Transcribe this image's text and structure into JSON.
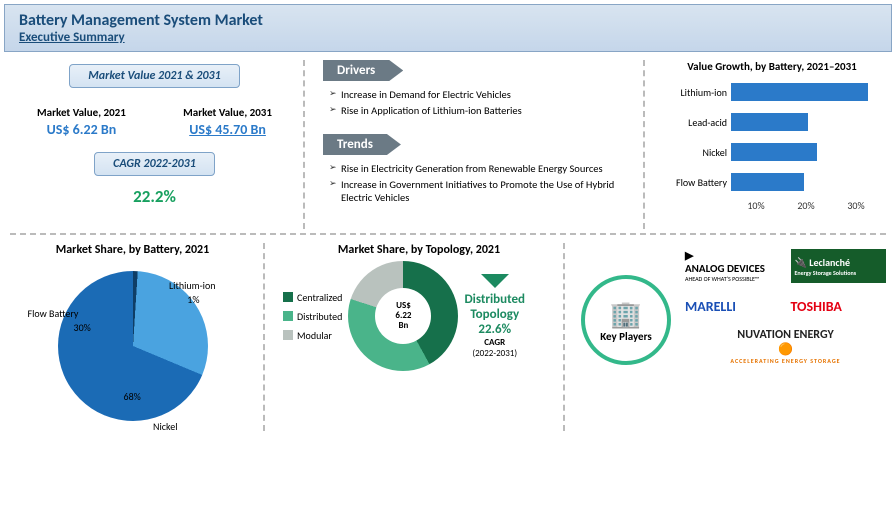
{
  "header": {
    "title": "Battery Management System Market",
    "subtitle": "Executive Summary"
  },
  "market_value": {
    "badge": "Market Value 2021 & 2031",
    "y1_label": "Market Value, 2021",
    "y1_value": "US$ 6.22 Bn",
    "y2_label": "Market Value, 2031",
    "y2_value": "US$ 45.70 Bn",
    "cagr_badge": "CAGR 2022-2031",
    "cagr_value": "22.2%"
  },
  "drivers": {
    "title": "Drivers",
    "items": [
      "Increase in Demand for Electric Vehicles",
      "Rise in Application of Lithium-ion Batteries"
    ]
  },
  "trends": {
    "title": "Trends",
    "items": [
      "Rise in Electricity Generation from Renewable Energy Sources",
      "Increase in Government Initiatives to Promote the Use of Hybrid Electric Vehicles"
    ]
  },
  "value_growth": {
    "title": "Value Growth,\nby Battery, 2021–2031",
    "type": "bar-horizontal",
    "xlim": [
      0,
      35
    ],
    "ticks": [
      "10%",
      "20%",
      "30%"
    ],
    "bars": [
      {
        "label": "Lithium-ion",
        "value": 32
      },
      {
        "label": "Lead-acid",
        "value": 18
      },
      {
        "label": "Nickel",
        "value": 20
      },
      {
        "label": "Flow Battery",
        "value": 17
      }
    ],
    "bar_color": "#2b7ac9",
    "bg": "#ffffff"
  },
  "pie_battery": {
    "title": "Market Share, by Battery, 2021",
    "type": "pie",
    "slices": [
      {
        "label": "Nickel",
        "value": 68,
        "color": "#1b6bb5",
        "pct": "68%"
      },
      {
        "label": "Flow Battery",
        "value": 30,
        "color": "#4aa3e0",
        "pct": "30%"
      },
      {
        "label": "Lithium-ion",
        "value": 1,
        "color": "#0f3e66",
        "pct": "1%"
      }
    ]
  },
  "donut_topology": {
    "title": "Market Share, by Topology, 2021",
    "type": "donut",
    "legend": [
      {
        "label": "Centralized",
        "color": "#16704b"
      },
      {
        "label": "Distributed",
        "color": "#4ab48a"
      },
      {
        "label": "Modular",
        "color": "#b9c2be"
      }
    ],
    "slices": [
      {
        "value": 42,
        "color": "#16704b"
      },
      {
        "value": 38,
        "color": "#4ab48a"
      },
      {
        "value": 20,
        "color": "#b9c2be"
      }
    ],
    "center_top": "US$",
    "center_mid": "6.22",
    "center_bot": "Bn",
    "callout_t1": "Distributed",
    "callout_t2": "Topology",
    "callout_pct": "22.6%",
    "callout_cagr": "CAGR",
    "callout_range": "(2022-2031)"
  },
  "key_players": {
    "label": "Key Players",
    "logos": {
      "analog": "ANALOG DEVICES",
      "analog_tag": "AHEAD OF WHAT'S POSSIBLE™",
      "leclanche": "Leclanché",
      "leclanche_tag": "Energy Storage Solutions",
      "marelli": "MARELLI",
      "toshiba": "TOSHIBA",
      "nuvation": "NUVATION ENERGY",
      "nuvation_tag": "ACCELERATING ENERGY STORAGE"
    }
  }
}
